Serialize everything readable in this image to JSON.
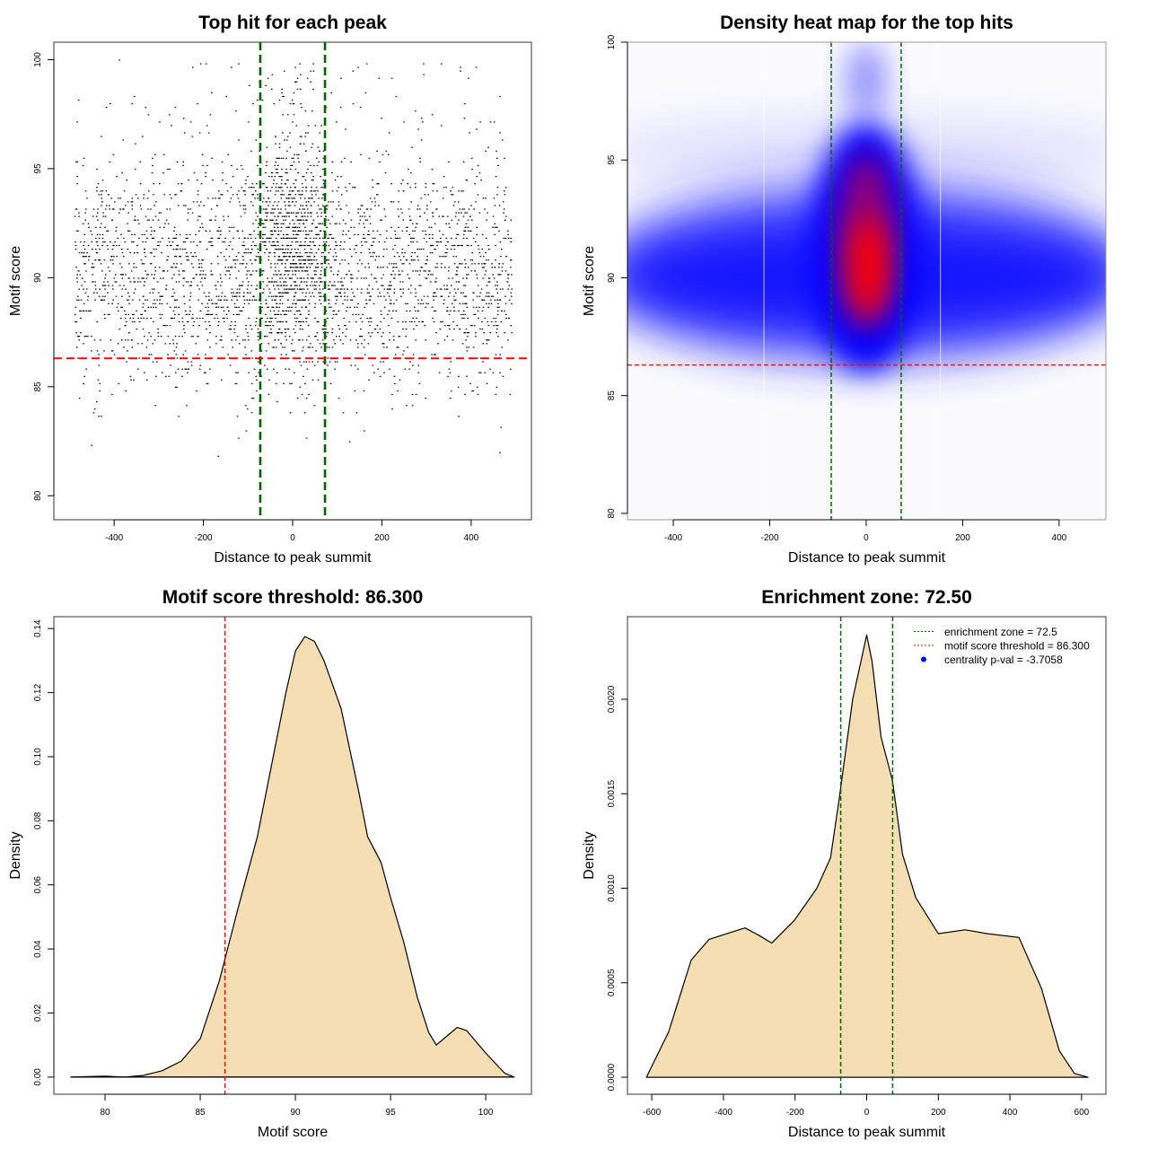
{
  "chart_data": [
    {
      "type": "scatter",
      "title": "Top hit for each peak",
      "xlabel": "Distance to peak summit",
      "ylabel": "Motif score",
      "xlim": [
        -535,
        535
      ],
      "ylim": [
        78.9,
        100.8
      ],
      "xticks": [
        "-400",
        "-200",
        "0",
        "200",
        "400"
      ],
      "yticks": [
        "80",
        "85",
        "90",
        "95",
        "100"
      ],
      "vlines": [
        -72.5,
        72.5
      ],
      "vline_color": "#006400",
      "hline": 86.3,
      "hline_color": "#ff0000",
      "point_color": "#000000",
      "grid": false
    },
    {
      "type": "heatmap",
      "title": "Density heat map for the top hits",
      "xlabel": "Distance to peak summit",
      "ylabel": "Motif score",
      "xlim": [
        -495,
        497
      ],
      "ylim": [
        79.73,
        100
      ],
      "xticks": [
        "-400",
        "-200",
        "0",
        "200",
        "400"
      ],
      "yticks": [
        "80",
        "85",
        "90",
        "95",
        "100"
      ],
      "vlines": [
        -72.5,
        72.5
      ],
      "vline_color": "#006400",
      "hline": 86.3,
      "hline_color": "#ff0000",
      "density_peak": {
        "x": 5,
        "y": 90.5
      },
      "colors": {
        "low": "#ffffff",
        "mid": "#0000ff",
        "high": "#ff0000"
      },
      "grid": false
    },
    {
      "type": "area",
      "title": "Motif score threshold: 86.300",
      "xlabel": "Motif score",
      "ylabel": "Density",
      "xlim": [
        77.31,
        102.4
      ],
      "ylim": [
        -0.00535,
        0.1437
      ],
      "xticks": [
        "80",
        "85",
        "90",
        "95",
        "100"
      ],
      "yticks": [
        "0.00",
        "0.02",
        "0.04",
        "0.06",
        "0.08",
        "0.10",
        "0.12",
        "0.14"
      ],
      "x": [
        78.2,
        80,
        81,
        82,
        83,
        84,
        85,
        86,
        87,
        88,
        89,
        89.5,
        90,
        90.5,
        91,
        91.5,
        92.4,
        93.3,
        93.8,
        94.5,
        95,
        95.7,
        96.4,
        97,
        97.4,
        98,
        98.5,
        99,
        100,
        101,
        101.5
      ],
      "y": [
        0,
        0.0003,
        0,
        0.0005,
        0.002,
        0.005,
        0.012,
        0.03,
        0.053,
        0.075,
        0.105,
        0.12,
        0.133,
        0.1375,
        0.136,
        0.13,
        0.115,
        0.09,
        0.075,
        0.067,
        0.056,
        0.042,
        0.025,
        0.014,
        0.01,
        0.013,
        0.0155,
        0.0145,
        0.0075,
        0.0012,
        0
      ],
      "fill": "#f5deb3",
      "vline": 86.3,
      "vline_color": "#ff0000",
      "grid": false
    },
    {
      "type": "area",
      "title": "Enrichment zone: 72.50",
      "xlabel": "Distance to peak summit",
      "ylabel": "Density",
      "xlim": [
        -668,
        668
      ],
      "ylim": [
        -9e-05,
        0.002437
      ],
      "xticks": [
        "-600",
        "-400",
        "-200",
        "0",
        "200",
        "400",
        "600"
      ],
      "yticks": [
        "0.0000",
        "0.0005",
        "0.0010",
        "0.0015",
        "0.0020"
      ],
      "x": [
        -615,
        -553,
        -490,
        -440,
        -390,
        -340,
        -300,
        -265,
        -202,
        -139,
        -101,
        -77,
        -39,
        0,
        15,
        40,
        72,
        100,
        137,
        200,
        275,
        337,
        425,
        488,
        538,
        580,
        618
      ],
      "y": [
        0,
        0.00024,
        0.00062,
        0.00073,
        0.00076,
        0.00079,
        0.00075,
        0.00071,
        0.00083,
        0.001,
        0.00116,
        0.00147,
        0.002,
        0.00234,
        0.0022,
        0.0018,
        0.00157,
        0.00118,
        0.00095,
        0.00076,
        0.00078,
        0.00076,
        0.00074,
        0.00047,
        0.00014,
        2e-05,
        0
      ],
      "fill": "#f5deb3",
      "vlines": [
        -72.5,
        72.5
      ],
      "vline_color": "#006400",
      "legend": {
        "position": "top-right",
        "entries": [
          {
            "label": "enrichment zone = 72.5",
            "color": "#006400",
            "symbol": "dotted-line"
          },
          {
            "label": "motif score threshold = 86.300",
            "color": "#ff0000",
            "symbol": "dotted-line"
          },
          {
            "label": "centrality p-val = -3.7058",
            "color": "#0000ff",
            "symbol": "point"
          }
        ]
      },
      "grid": false
    }
  ]
}
